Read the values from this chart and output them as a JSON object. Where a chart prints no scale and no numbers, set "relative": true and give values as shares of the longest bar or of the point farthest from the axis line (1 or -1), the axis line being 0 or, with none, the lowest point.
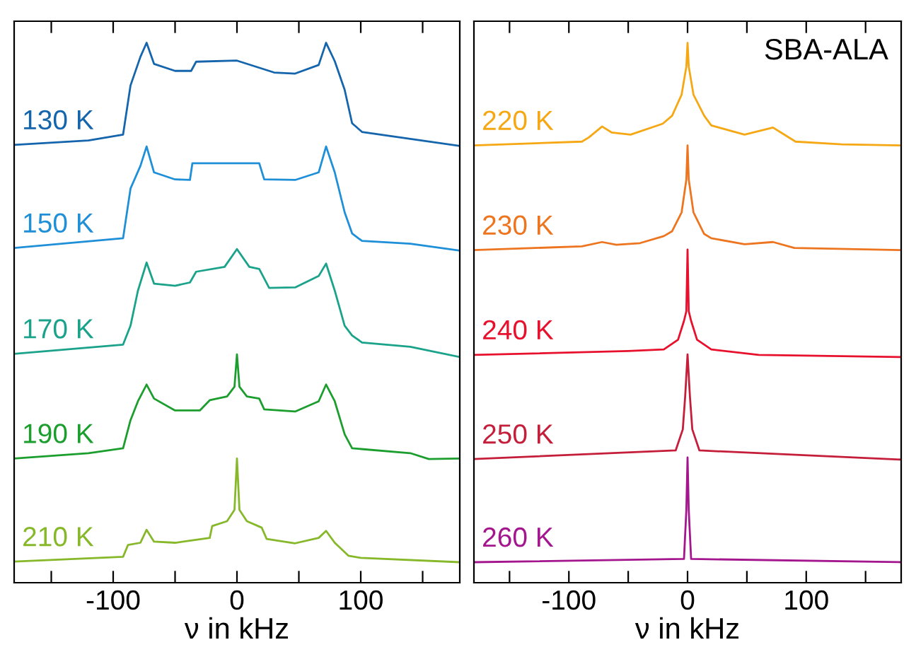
{
  "chart_data": [
    {
      "type": "line",
      "relative": true,
      "xlabel": "ν in kHz",
      "xlim": [
        -180,
        180
      ],
      "xticks": [
        {
          "value": -150,
          "label": null
        },
        -100,
        {
          "value": -50,
          "label": null
        },
        0,
        {
          "value": 50,
          "label": null
        },
        100,
        {
          "value": 150,
          "label": null
        }
      ],
      "tick_labels": "x",
      "series": [
        {
          "name": "130 K",
          "color": "#1565ad",
          "x": [
            -180,
            -120,
            -92,
            -86,
            -78,
            -73,
            -67,
            -50,
            -37,
            -33,
            0,
            30,
            47,
            66,
            72,
            79,
            87,
            93,
            101,
            140,
            180
          ],
          "values": [
            0.811,
            0.819,
            0.83,
            0.921,
            0.974,
            1.0,
            0.961,
            0.948,
            0.948,
            0.965,
            0.967,
            0.945,
            0.943,
            0.959,
            1.0,
            0.966,
            0.913,
            0.851,
            0.835,
            0.822,
            0.809
          ]
        },
        {
          "name": "150 K",
          "color": "#1f8fd8",
          "x": [
            -180,
            -92,
            -86,
            -78,
            -73,
            -67,
            -50,
            -38,
            -36,
            0,
            18,
            22,
            47,
            66,
            72,
            79,
            87,
            93,
            101,
            140,
            180
          ],
          "values": [
            0.62,
            0.638,
            0.73,
            0.772,
            0.808,
            0.76,
            0.747,
            0.746,
            0.777,
            0.777,
            0.777,
            0.747,
            0.746,
            0.76,
            0.808,
            0.76,
            0.686,
            0.647,
            0.633,
            0.628,
            0.615
          ]
        },
        {
          "name": "170 K",
          "color": "#1aa38a",
          "x": [
            -180,
            -92,
            -86,
            -80,
            -73,
            -67,
            -50,
            -38,
            -33,
            -10,
            0,
            10,
            18,
            26,
            47,
            66,
            72,
            79,
            87,
            93,
            101,
            140,
            180
          ],
          "values": [
            0.424,
            0.441,
            0.476,
            0.541,
            0.593,
            0.554,
            0.55,
            0.556,
            0.576,
            0.585,
            0.618,
            0.585,
            0.581,
            0.546,
            0.547,
            0.568,
            0.591,
            0.541,
            0.476,
            0.458,
            0.445,
            0.437,
            0.418
          ]
        },
        {
          "name": "190 K",
          "color": "#1b9e2e",
          "x": [
            -180,
            -120,
            -92,
            -86,
            -80,
            -73,
            -67,
            -50,
            -30,
            -22,
            -8,
            -2,
            0,
            2,
            8,
            18,
            22,
            47,
            66,
            72,
            79,
            87,
            93,
            140,
            155,
            180
          ],
          "values": [
            0.23,
            0.24,
            0.249,
            0.301,
            0.336,
            0.367,
            0.341,
            0.319,
            0.319,
            0.338,
            0.345,
            0.363,
            0.423,
            0.363,
            0.345,
            0.341,
            0.321,
            0.317,
            0.336,
            0.367,
            0.336,
            0.275,
            0.249,
            0.24,
            0.229,
            0.23
          ]
        },
        {
          "name": "210 K",
          "color": "#86b82a",
          "x": [
            -180,
            -92,
            -88,
            -78,
            -73,
            -67,
            -50,
            -22,
            -20,
            -8,
            -2,
            0,
            2,
            8,
            20,
            24,
            47,
            66,
            72,
            79,
            90,
            100,
            180
          ],
          "values": [
            0.039,
            0.048,
            0.07,
            0.074,
            0.098,
            0.076,
            0.074,
            0.083,
            0.105,
            0.114,
            0.135,
            0.23,
            0.135,
            0.114,
            0.102,
            0.081,
            0.073,
            0.083,
            0.096,
            0.074,
            0.05,
            0.046,
            0.038
          ]
        }
      ]
    },
    {
      "type": "line",
      "relative": true,
      "xlabel": "ν in kHz",
      "xlim": [
        -180,
        180
      ],
      "xticks": [
        {
          "value": -150,
          "label": null
        },
        -100,
        {
          "value": -50,
          "label": null
        },
        0,
        {
          "value": 50,
          "label": null
        },
        100,
        {
          "value": 150,
          "label": null
        }
      ],
      "tick_labels": "x",
      "series": [
        {
          "name": "220 K",
          "color": "#f5a814",
          "x": [
            -180,
            -89,
            -83,
            -72,
            -64,
            -48,
            -21,
            -13,
            -5,
            -1,
            0,
            1,
            5,
            14,
            20,
            48,
            72,
            80,
            91,
            130,
            180
          ],
          "values": [
            0.81,
            0.817,
            0.825,
            0.845,
            0.834,
            0.83,
            0.85,
            0.865,
            0.904,
            0.956,
            1.0,
            0.956,
            0.904,
            0.865,
            0.847,
            0.83,
            0.843,
            0.832,
            0.817,
            0.812,
            0.81
          ]
        },
        {
          "name": "230 K",
          "color": "#ed7520",
          "x": [
            -180,
            -89,
            -72,
            -60,
            -40,
            -20,
            -13,
            -5,
            -1,
            0,
            1,
            5,
            14,
            20,
            48,
            72,
            90,
            180
          ],
          "values": [
            0.616,
            0.623,
            0.631,
            0.626,
            0.629,
            0.642,
            0.651,
            0.686,
            0.747,
            0.81,
            0.747,
            0.686,
            0.646,
            0.638,
            0.627,
            0.631,
            0.62,
            0.616
          ]
        },
        {
          "name": "240 K",
          "color": "#e8112d",
          "x": [
            -180,
            -50,
            -20,
            -8,
            -3,
            -1,
            0,
            1,
            3,
            8,
            20,
            60,
            180
          ],
          "values": [
            0.422,
            0.429,
            0.432,
            0.45,
            0.485,
            0.503,
            0.617,
            0.503,
            0.485,
            0.45,
            0.432,
            0.422,
            0.418
          ]
        },
        {
          "name": "250 K",
          "color": "#c41e3a",
          "x": [
            -180,
            -10,
            -4,
            -2,
            0,
            2,
            4,
            10,
            180
          ],
          "values": [
            0.229,
            0.245,
            0.284,
            0.345,
            0.423,
            0.345,
            0.284,
            0.245,
            0.228
          ]
        },
        {
          "name": "260 K",
          "color": "#a3168e",
          "x": [
            -180,
            -3,
            -1,
            0,
            1,
            3,
            180
          ],
          "values": [
            0.038,
            0.044,
            0.135,
            0.232,
            0.135,
            0.044,
            0.038
          ]
        }
      ],
      "annotations": [
        "SBA-ALA"
      ]
    }
  ]
}
